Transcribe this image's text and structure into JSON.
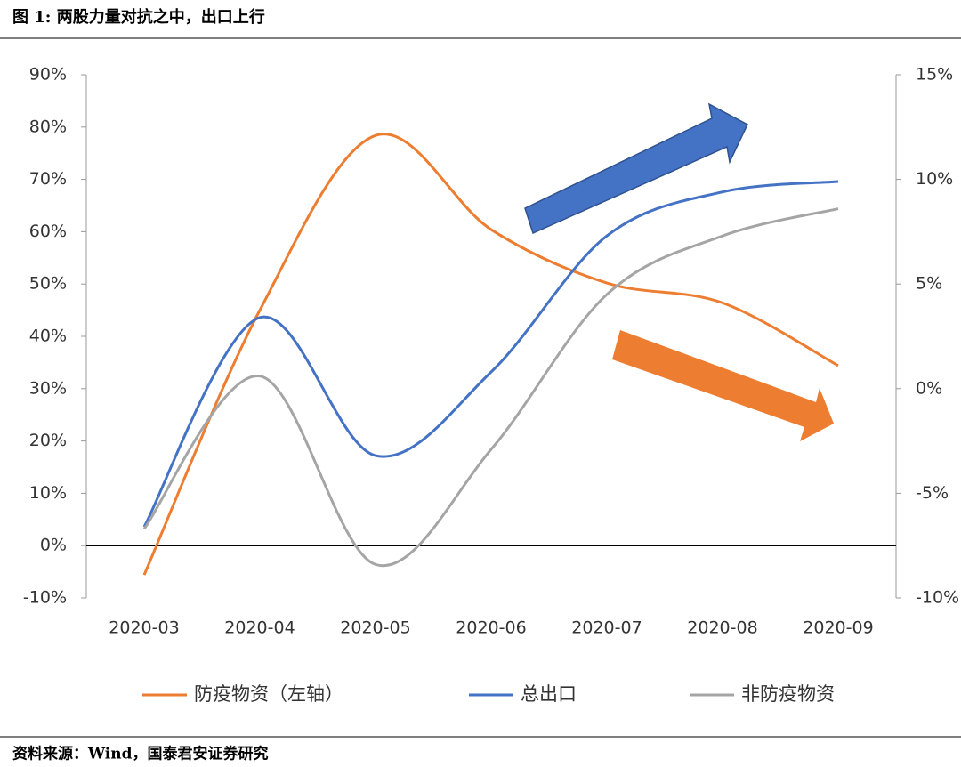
{
  "chart_data": {
    "type": "line",
    "title": "图 1: 两股力量对抗之中，出口上行",
    "source": "资料来源：Wind，国泰君安证券研究",
    "categories": [
      "2020-03",
      "2020-04",
      "2020-05",
      "2020-06",
      "2020-07",
      "2020-08",
      "2020-09"
    ],
    "series": [
      {
        "name": "防疫物资（左轴）",
        "color": "#ED7D31",
        "values": [
          -5.6,
          45,
          78.4,
          60.4,
          50.2,
          46.4,
          34.4
        ]
      },
      {
        "name": "总出口",
        "color": "#4472C4",
        "axis": "y2",
        "values": [
          -6.6,
          3.4,
          -3.2,
          0.8,
          7.3,
          9.4,
          9.9
        ]
      },
      {
        "name": "非防疫物资",
        "color": "#A5A5A5",
        "axis": "y2",
        "values": [
          -6.7,
          0.6,
          -8.4,
          -2.9,
          4.5,
          7.3,
          8.6
        ]
      }
    ],
    "ylim": [
      -10,
      90
    ],
    "yticks": [
      {
        "value": -10,
        "label": "-10%"
      },
      {
        "value": 0,
        "label": "0%"
      },
      {
        "value": 10,
        "label": "10%"
      },
      {
        "value": 20,
        "label": "20%"
      },
      {
        "value": 30,
        "label": "30%"
      },
      {
        "value": 40,
        "label": "40%"
      },
      {
        "value": 50,
        "label": "50%"
      },
      {
        "value": 60,
        "label": "60%"
      },
      {
        "value": 70,
        "label": "70%"
      },
      {
        "value": 80,
        "label": "80%"
      },
      {
        "value": 90,
        "label": "90%"
      }
    ],
    "y2lim": [
      -10,
      15
    ],
    "y2ticks": [
      {
        "value": -10,
        "label": "-10%"
      },
      {
        "value": -5,
        "label": "-5%"
      },
      {
        "value": 0,
        "label": "0%"
      },
      {
        "value": 5,
        "label": "5%"
      },
      {
        "value": 10,
        "label": "10%"
      },
      {
        "value": 15,
        "label": "15%"
      }
    ]
  }
}
